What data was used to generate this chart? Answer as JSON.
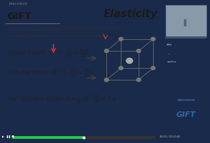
{
  "title": "Elasticity",
  "logo_text": "GIFT",
  "logo_subtext": "PRECITECH",
  "subtitle_line1": "Relation between linear expansion and volume expansion.",
  "subtitle_line2": "Example: hydrostatic stress and thermal expansion",
  "bg_main": "#1a2a4a",
  "bg_slide": "#f5f0e8",
  "bg_right_panel": "#2060a0",
  "title_color": "#1a1a1a",
  "bottom_bar_color": "#111111",
  "progress_color": "#22cc44",
  "arrow_color": "#cc3333",
  "cube_color": "#888888"
}
